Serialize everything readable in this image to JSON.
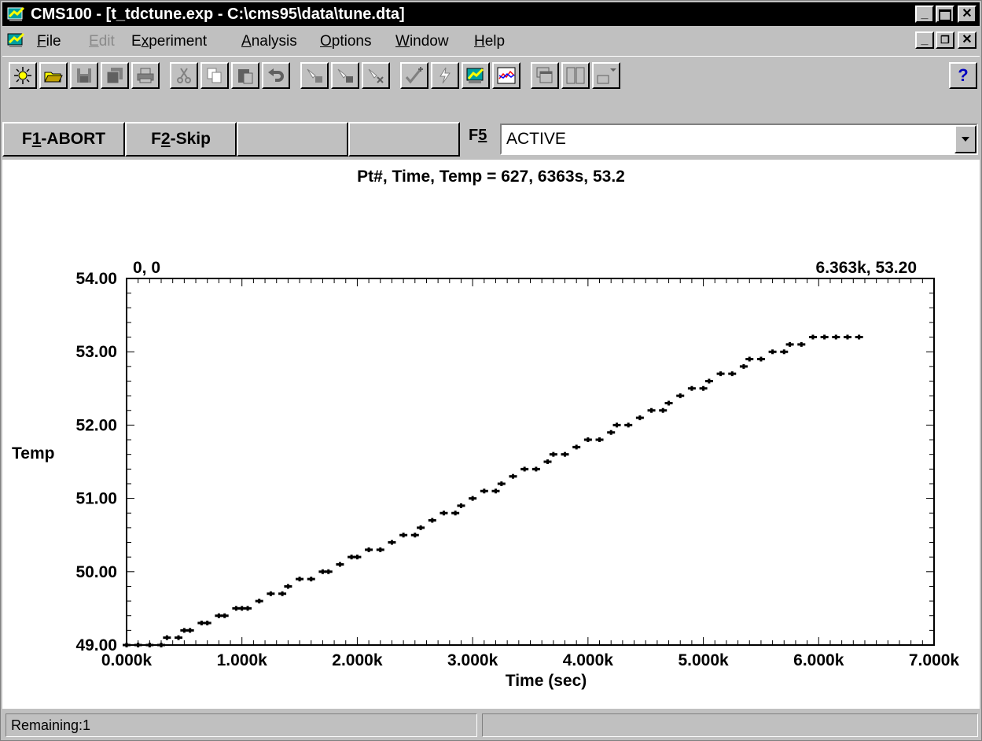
{
  "window": {
    "title": "CMS100 - [t_tdctune.exp - C:\\cms95\\data\\tune.dta]",
    "titlebar_color": "#000000"
  },
  "menu": {
    "items": [
      {
        "label": "File",
        "underline": "F",
        "rest": "ile",
        "enabled": true
      },
      {
        "label": "Edit",
        "underline": "E",
        "rest": "dit",
        "enabled": false
      },
      {
        "label": "Experiment",
        "underline": "",
        "pre": "E",
        "u": "x",
        "post": "periment",
        "enabled": true
      },
      {
        "label": "Analysis",
        "underline": "A",
        "rest": "nalysis",
        "enabled": true
      },
      {
        "label": "Options",
        "underline": "O",
        "rest": "ptions",
        "enabled": true
      },
      {
        "label": "Window",
        "underline": "W",
        "rest": "indow",
        "enabled": true
      },
      {
        "label": "Help",
        "underline": "H",
        "rest": "elp",
        "enabled": true
      }
    ]
  },
  "toolbar": {
    "buttons": [
      "new-icon",
      "open-folder-icon",
      "save-icon",
      "save-all-icon",
      "print-icon",
      "cut-icon",
      "copy-icon",
      "paste-icon",
      "undo-icon",
      "run-icon",
      "run-step-icon",
      "run-stop-icon",
      "check-icon",
      "lightning-icon",
      "script-icon",
      "chart-icon",
      "cascade-icon",
      "tile-icon",
      "arrange-icon",
      "help-icon"
    ]
  },
  "fkeys": {
    "f1": {
      "pre": "F",
      "u": "1",
      "post": "-ABORT"
    },
    "f2": {
      "pre": "F",
      "u": "2",
      "post": "-Skip"
    },
    "f3": "",
    "f4": "",
    "f5_pre": "F",
    "f5_u": "5",
    "status_value": "ACTIVE"
  },
  "readout": "Pt#, Time, Temp = 627, 6363s, 53.2",
  "chart_data": {
    "type": "scatter",
    "xlabel": "Time (sec)",
    "ylabel": "Temp",
    "xlim": [
      0,
      7000
    ],
    "ylim": [
      49,
      54
    ],
    "x_tick_labels": [
      "0.000k",
      "1.000k",
      "2.000k",
      "3.000k",
      "4.000k",
      "5.000k",
      "6.000k",
      "7.000k"
    ],
    "y_tick_labels": [
      "49.00",
      "50.00",
      "51.00",
      "52.00",
      "53.00",
      "54.00"
    ],
    "corner_left": "0, 0",
    "corner_right": "6.363k, 53.20",
    "marker_color": "#000000",
    "description_of_data": "stepwise linear ramp in 0.1 degree increments",
    "series": [
      {
        "x": [
          0,
          100,
          200,
          300,
          350,
          450,
          500,
          550,
          650,
          700,
          800,
          850,
          950,
          1000,
          1050,
          1150,
          1250,
          1350,
          1400,
          1500,
          1600,
          1700,
          1750,
          1850,
          1950,
          2000,
          2100,
          2200,
          2300,
          2400,
          2500,
          2550,
          2650,
          2750,
          2850,
          2900,
          3000,
          3100,
          3200,
          3250,
          3350,
          3450,
          3550,
          3650,
          3700,
          3800,
          3900,
          4000,
          4100,
          4200,
          4250,
          4350,
          4450,
          4550,
          4650,
          4700,
          4800,
          4900,
          5000,
          5050,
          5150,
          5250,
          5350,
          5400,
          5500,
          5600,
          5700,
          5750,
          5850,
          5950,
          6050,
          6150,
          6250,
          6350
        ],
        "y": [
          49.0,
          49.0,
          49.0,
          49.0,
          49.1,
          49.1,
          49.2,
          49.2,
          49.3,
          49.3,
          49.4,
          49.4,
          49.5,
          49.5,
          49.5,
          49.6,
          49.7,
          49.7,
          49.8,
          49.9,
          49.9,
          50.0,
          50.0,
          50.1,
          50.2,
          50.2,
          50.3,
          50.3,
          50.4,
          50.5,
          50.5,
          50.6,
          50.7,
          50.8,
          50.8,
          50.9,
          51.0,
          51.1,
          51.1,
          51.2,
          51.3,
          51.4,
          51.4,
          51.5,
          51.6,
          51.6,
          51.7,
          51.8,
          51.8,
          51.9,
          52.0,
          52.0,
          52.1,
          52.2,
          52.2,
          52.3,
          52.4,
          52.5,
          52.5,
          52.6,
          52.7,
          52.7,
          52.8,
          52.9,
          52.9,
          53.0,
          53.0,
          53.1,
          53.1,
          53.2,
          53.2,
          53.2,
          53.2,
          53.2
        ]
      }
    ]
  },
  "statusbar": {
    "left": "Remaining:1",
    "right": ""
  }
}
